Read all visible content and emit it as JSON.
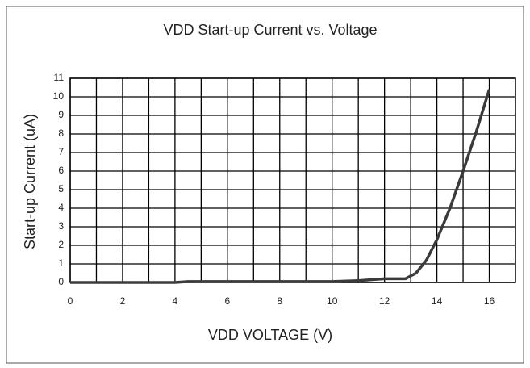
{
  "chart_data": {
    "type": "line",
    "title": "VDD Start-up Current vs. Voltage",
    "x_label": "VDD VOLTAGE (V)",
    "y_label": "Start-up Current (uA)",
    "x": [
      0,
      4,
      4.5,
      10,
      11,
      12,
      12.8,
      13.2,
      13.6,
      14,
      14.5,
      15,
      15.5,
      16
    ],
    "series": [
      {
        "name": "Start-up Current",
        "color": "#3a3a3a",
        "values": [
          0,
          0,
          0.05,
          0.05,
          0.1,
          0.2,
          0.2,
          0.5,
          1.2,
          2.3,
          4,
          6,
          8.1,
          10.4
        ]
      }
    ],
    "xlim": [
      0,
      17
    ],
    "xticks": [
      0,
      2,
      4,
      6,
      8,
      10,
      12,
      14,
      16
    ],
    "xminorticks": [
      1,
      3,
      5,
      7,
      9,
      11,
      13,
      15
    ],
    "ylim": [
      0,
      11
    ],
    "yticks": [
      0,
      1,
      2,
      3,
      4,
      5,
      6,
      7,
      8,
      9,
      10,
      11
    ],
    "grid": true
  }
}
